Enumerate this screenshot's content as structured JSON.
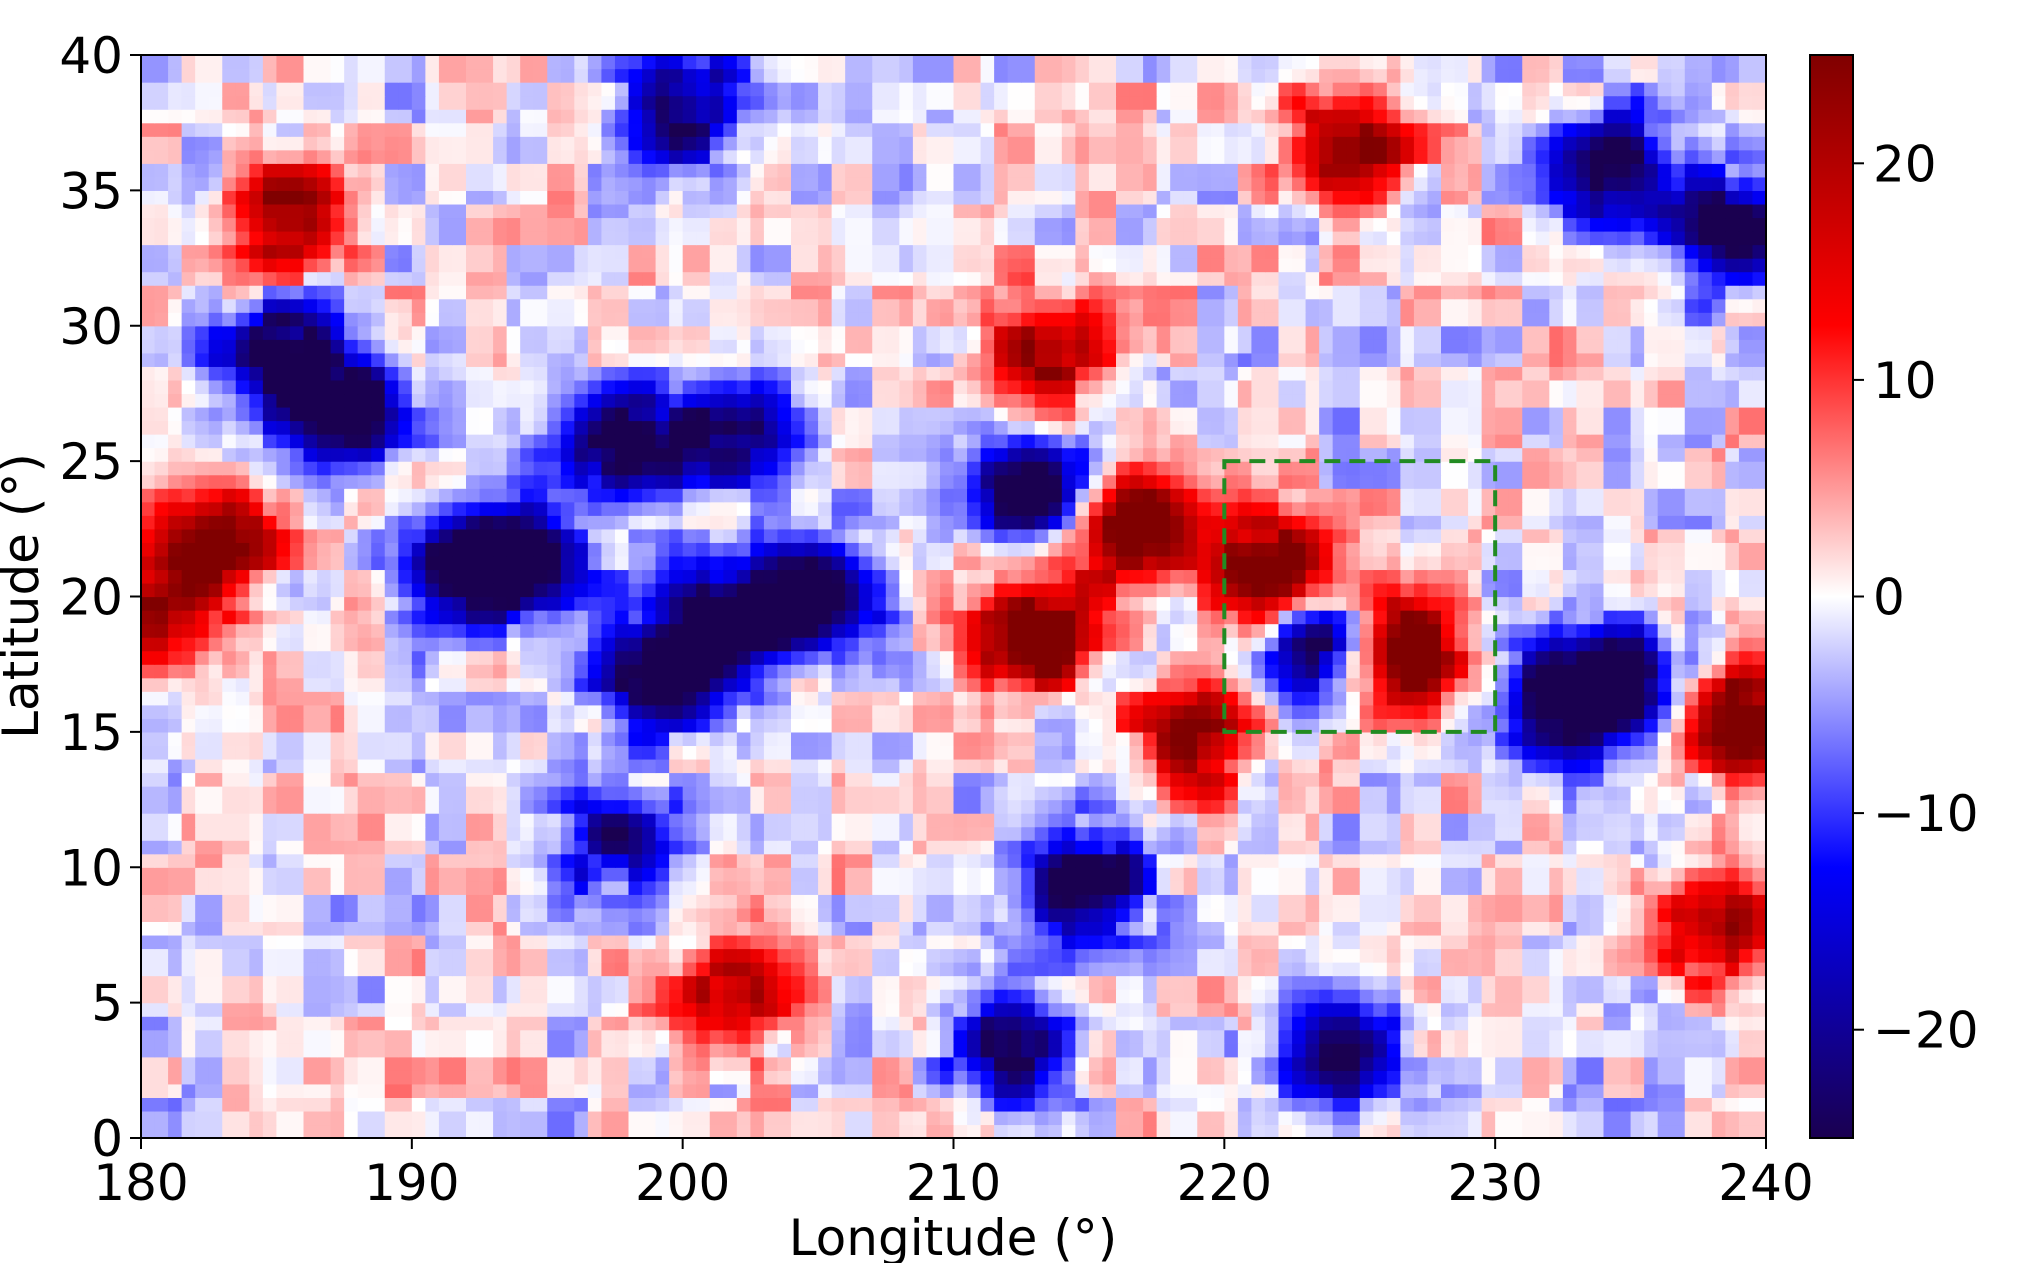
{
  "chart_data": {
    "type": "heatmap",
    "xlabel": "Longitude ($^\\circ$)",
    "ylabel": "Latitude ($^\\circ$)",
    "xlim": [
      180,
      240
    ],
    "ylim": [
      0,
      40
    ],
    "x_ticks": [
      "180",
      "190",
      "200",
      "210",
      "220",
      "230",
      "240"
    ],
    "x_tick_values": [
      180,
      190,
      200,
      210,
      220,
      230,
      240
    ],
    "y_ticks": [
      "0",
      "5",
      "10",
      "15",
      "20",
      "25",
      "30",
      "35",
      "40"
    ],
    "y_tick_values": [
      0,
      5,
      10,
      15,
      20,
      25,
      30,
      35,
      40
    ],
    "colorbar": {
      "colormap": "seismic",
      "range": [
        -25,
        25
      ],
      "ticks": [
        "−20",
        "−10",
        "0",
        "10",
        "20"
      ],
      "tick_values": [
        -20,
        -10,
        0,
        10,
        20
      ],
      "colors": [
        "#1a0050",
        "#0000ff",
        "#ffffff",
        "#ff0000",
        "#800000"
      ]
    },
    "annotations": [
      {
        "type": "rectangle",
        "style": "dashed",
        "color": "#228b22",
        "x_range": [
          220,
          230
        ],
        "y_range": [
          15,
          25
        ]
      }
    ],
    "features": [
      {
        "kind": "negative",
        "lon": 205.0,
        "lat": 20.0,
        "value": -25
      },
      {
        "kind": "negative",
        "lon": 201.5,
        "lat": 19.0,
        "value": -25
      },
      {
        "kind": "negative",
        "lon": 194.0,
        "lat": 21.5,
        "value": -24
      },
      {
        "kind": "negative",
        "lon": 191.5,
        "lat": 21.0,
        "value": -20
      },
      {
        "kind": "negative",
        "lon": 198.0,
        "lat": 25.5,
        "value": -24
      },
      {
        "kind": "negative",
        "lon": 199.0,
        "lat": 17.0,
        "value": -22
      },
      {
        "kind": "negative",
        "lon": 213.0,
        "lat": 24.0,
        "value": -25
      },
      {
        "kind": "negative",
        "lon": 185.0,
        "lat": 29.0,
        "value": -22
      },
      {
        "kind": "negative",
        "lon": 187.5,
        "lat": 27.0,
        "value": -22
      },
      {
        "kind": "negative",
        "lon": 202.0,
        "lat": 26.0,
        "value": -18
      },
      {
        "kind": "negative",
        "lon": 234.5,
        "lat": 17.0,
        "value": -25
      },
      {
        "kind": "negative",
        "lon": 232.0,
        "lat": 16.0,
        "value": -20
      },
      {
        "kind": "negative",
        "lon": 234.5,
        "lat": 35.8,
        "value": -22
      },
      {
        "kind": "negative",
        "lon": 239.0,
        "lat": 33.5,
        "value": -22
      },
      {
        "kind": "negative",
        "lon": 200.0,
        "lat": 38.0,
        "value": -20
      },
      {
        "kind": "negative",
        "lon": 215.0,
        "lat": 9.5,
        "value": -22
      },
      {
        "kind": "negative",
        "lon": 212.0,
        "lat": 3.5,
        "value": -20
      },
      {
        "kind": "negative",
        "lon": 224.5,
        "lat": 3.2,
        "value": -18
      },
      {
        "kind": "negative",
        "lon": 223.5,
        "lat": 18.0,
        "value": -22
      },
      {
        "kind": "negative",
        "lon": 197.5,
        "lat": 11.0,
        "value": -16
      },
      {
        "kind": "positive",
        "lon": 213.0,
        "lat": 18.5,
        "value": 25
      },
      {
        "kind": "positive",
        "lon": 216.5,
        "lat": 22.5,
        "value": 25
      },
      {
        "kind": "positive",
        "lon": 221.5,
        "lat": 21.0,
        "value": 25
      },
      {
        "kind": "positive",
        "lon": 226.5,
        "lat": 18.0,
        "value": 25
      },
      {
        "kind": "positive",
        "lon": 239.0,
        "lat": 15.5,
        "value": 25
      },
      {
        "kind": "positive",
        "lon": 224.5,
        "lat": 36.5,
        "value": 20
      },
      {
        "kind": "positive",
        "lon": 185.5,
        "lat": 34.0,
        "value": 20
      },
      {
        "kind": "positive",
        "lon": 182.8,
        "lat": 22.0,
        "value": 20
      },
      {
        "kind": "positive",
        "lon": 180.5,
        "lat": 19.2,
        "value": 18
      },
      {
        "kind": "positive",
        "lon": 219.0,
        "lat": 14.8,
        "value": 20
      },
      {
        "kind": "positive",
        "lon": 213.5,
        "lat": 29.0,
        "value": 16
      },
      {
        "kind": "positive",
        "lon": 202.0,
        "lat": 5.3,
        "value": 16
      },
      {
        "kind": "positive",
        "lon": 238.0,
        "lat": 8.0,
        "value": 18
      }
    ]
  }
}
